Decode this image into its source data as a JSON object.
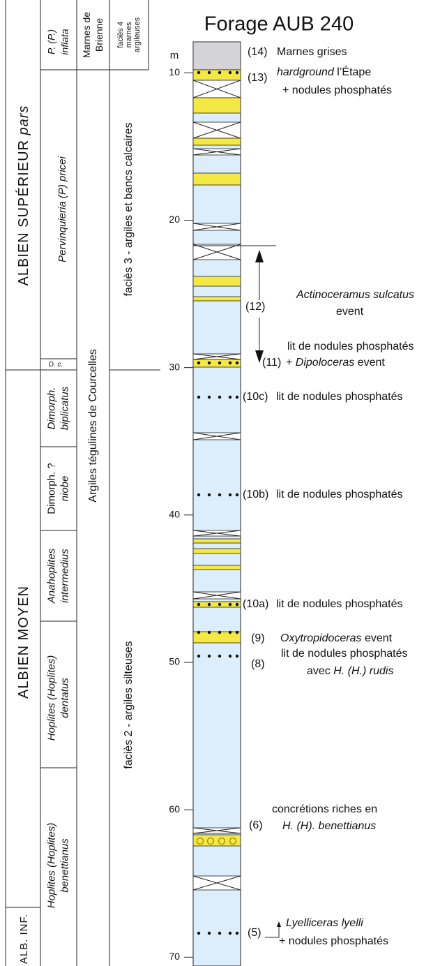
{
  "title": "Forage AUB 240",
  "depth_axis": {
    "unit": "m",
    "range": [
      7.9,
      70.6
    ],
    "ticks": [
      10,
      20,
      30,
      40,
      50,
      60,
      70
    ]
  },
  "stages": [
    [
      {
        "text": "ALBIEN SUPÉRIEUR "
      },
      {
        "text": "pars",
        "italic": true
      }
    ],
    [
      {
        "text": "ALBIEN MOYEN"
      }
    ],
    [
      {
        "text": "ALB. INF."
      }
    ]
  ],
  "zones": [
    [
      [
        {
          "text": "P. (P.)",
          "italic": true
        }
      ],
      [
        {
          "text": "inflata",
          "italic": true
        }
      ]
    ],
    [
      [
        {
          "text": "Pervinquieria (P) pricei",
          "italic": true
        }
      ]
    ],
    [
      [
        {
          "text": "D. c.",
          "italic": true
        }
      ]
    ],
    [
      [
        {
          "text": "Dimorph.",
          "italic": true
        }
      ],
      [
        {
          "text": "biplicatus",
          "italic": true
        }
      ]
    ],
    [
      [
        {
          "text": "Dimorph."
        },
        {
          "text": " ?"
        }
      ],
      [
        {
          "text": "niobe",
          "italic": true
        }
      ]
    ],
    [
      [
        {
          "text": "Anahoplites",
          "italic": true
        }
      ],
      [
        {
          "text": "intermedius",
          "italic": true
        }
      ]
    ],
    [
      [
        {
          "text": "Hoplites (Hoplites)",
          "italic": true
        }
      ],
      [
        {
          "text": "dentatus",
          "italic": true
        }
      ]
    ],
    [
      [
        {
          "text": "Hoplites (Hoplites)",
          "italic": true
        }
      ],
      [
        {
          "text": "benettianus",
          "italic": true
        }
      ]
    ]
  ],
  "formations": [
    [
      [
        {
          "text": "Marnes de"
        }
      ],
      [
        {
          "text": "Brienne"
        }
      ]
    ],
    [
      [
        {
          "text": "Argiles tégulines de Courcelles"
        }
      ]
    ]
  ],
  "facies": [
    [
      [
        {
          "text": "faciès 4"
        }
      ],
      [
        {
          "text": "marnes"
        }
      ],
      [
        {
          "text": "argileuses"
        }
      ]
    ],
    [
      [
        {
          "text": "faciès 3 - argiles et bancs calcaires"
        }
      ]
    ],
    [
      [
        {
          "text": "faciès 2 - argiles silteuses"
        }
      ]
    ]
  ],
  "annotations": [
    {
      "number": "(14)",
      "lines": [
        [
          {
            "text": "Marnes grises"
          }
        ]
      ]
    },
    {
      "number": "(13)",
      "lines": [
        [
          {
            "text": "hardground",
            "italic": true
          },
          {
            "text": " l’Étape"
          }
        ],
        [
          {
            "text": "+ nodules phosphatés"
          }
        ]
      ]
    },
    {
      "number": "(12)",
      "lines": [
        [
          {
            "text": "Actinoceramus sulcatus",
            "italic": true
          }
        ],
        [
          {
            "text": "event"
          }
        ]
      ]
    },
    {
      "lines": [
        [
          {
            "text": "lit de nodules phosphatés"
          }
        ]
      ]
    },
    {
      "number": "(11)",
      "lines": [
        [
          {
            "text": "+ "
          },
          {
            "text": "Dipoloceras",
            "italic": true
          },
          {
            "text": " event"
          }
        ]
      ]
    },
    {
      "number": "(10c)",
      "lines": [
        [
          {
            "text": "lit de nodules phosphatés"
          }
        ]
      ]
    },
    {
      "number": "(10b)",
      "lines": [
        [
          {
            "text": "lit de nodules phosphatés"
          }
        ]
      ]
    },
    {
      "number": "(10a)",
      "lines": [
        [
          {
            "text": "lit de nodules phosphatés"
          }
        ]
      ]
    },
    {
      "number": "(9)",
      "lines": [
        [
          {
            "text": "Oxytropidoceras",
            "italic": true
          },
          {
            "text": " event"
          }
        ]
      ]
    },
    {
      "number": "(8)",
      "lines": [
        [
          {
            "text": "lit de nodules phosphatés"
          }
        ],
        [
          {
            "text": "avec "
          },
          {
            "text": "H. (H.) rudis",
            "italic": true
          }
        ]
      ]
    },
    {
      "number": "(6)",
      "lines": [
        [
          {
            "text": "concrétions riches en"
          }
        ],
        [
          {
            "text": "H. (H). benettianus",
            "italic": true
          }
        ]
      ]
    },
    {
      "number": "(5)",
      "lines": [
        [
          {
            "text": "Lyelliceras lyelli",
            "italic": true
          }
        ],
        [
          {
            "text": "+ nodules phosphatés"
          }
        ]
      ]
    }
  ]
}
